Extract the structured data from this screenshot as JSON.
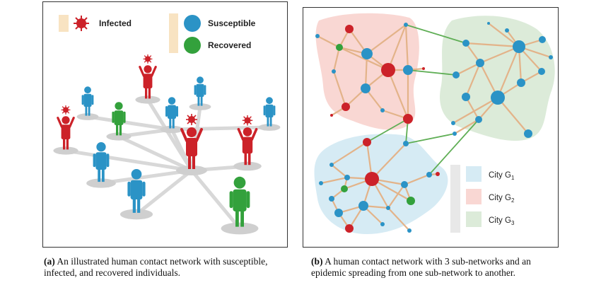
{
  "panel_a": {
    "legend": {
      "infected": "Infected",
      "susceptible": "Susceptible",
      "recovered": "Recovered"
    }
  },
  "panel_b": {
    "legend": {
      "city1": "City G",
      "city1_sub": "1",
      "city2": "City G",
      "city2_sub": "2",
      "city3": "City G",
      "city3_sub": "3"
    }
  },
  "captions": {
    "a_label": "(a)",
    "a_text": "An illustrated human contact network with susceptible, infected, and recovered individuals.",
    "b_label": "(b)",
    "b_text": "A human contact network with 3 sub-networks and an epidemic spreading from one sub-network to another."
  },
  "colors": {
    "infected": "#cc2229",
    "susceptible": "#2b93c6",
    "recovered": "#33a13c",
    "city1": "#d6ebf4",
    "city2": "#f9d7d3",
    "city3": "#dcebd9",
    "edge": "#e3b389",
    "bridge": "#5fae55"
  }
}
